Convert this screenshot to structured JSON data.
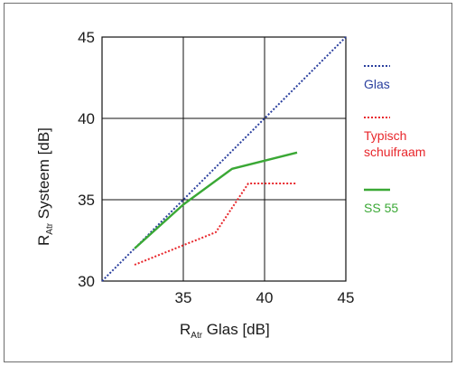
{
  "chart_data": {
    "type": "line",
    "title": "",
    "xlabel": {
      "main": "R",
      "sub": "Atr",
      "rest": " Glas [dB]"
    },
    "ylabel": {
      "main": "R",
      "sub": "Atr",
      "rest": " Systeem [dB]"
    },
    "xlim": [
      30,
      45
    ],
    "ylim": [
      30,
      45
    ],
    "xticks": [
      35,
      40,
      45
    ],
    "yticks": [
      30,
      35,
      40,
      45
    ],
    "grid": true,
    "legend_position": "right",
    "series": [
      {
        "name": "Glas",
        "legend_lines": [
          "Glas"
        ],
        "color": "#2a3f9e",
        "style": "dotted",
        "x": [
          30,
          45
        ],
        "y": [
          30,
          45
        ]
      },
      {
        "name": "Typisch schuifraam",
        "legend_lines": [
          "Typisch",
          "schuifraam"
        ],
        "color": "#e8262b",
        "style": "dotted",
        "x": [
          32,
          37,
          39,
          42
        ],
        "y": [
          31,
          33,
          36,
          36
        ]
      },
      {
        "name": "SS 55",
        "legend_lines": [
          "SS 55"
        ],
        "color": "#3aa835",
        "style": "solid",
        "x": [
          32,
          35,
          38,
          42
        ],
        "y": [
          32,
          34.7,
          36.9,
          37.9
        ]
      }
    ]
  }
}
